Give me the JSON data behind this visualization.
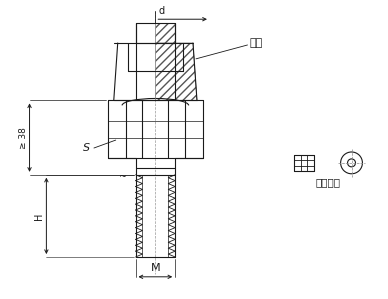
{
  "bg_color": "#ffffff",
  "line_color": "#1a1a1a",
  "label_d": "d",
  "label_s": "S",
  "label_m": "M",
  "label_h": "H",
  "label_38": "≥ 38",
  "label_ka_tao": "卡套",
  "label_movable": "可动卡套",
  "fig_width": 3.88,
  "fig_height": 2.99,
  "dpi": 100
}
